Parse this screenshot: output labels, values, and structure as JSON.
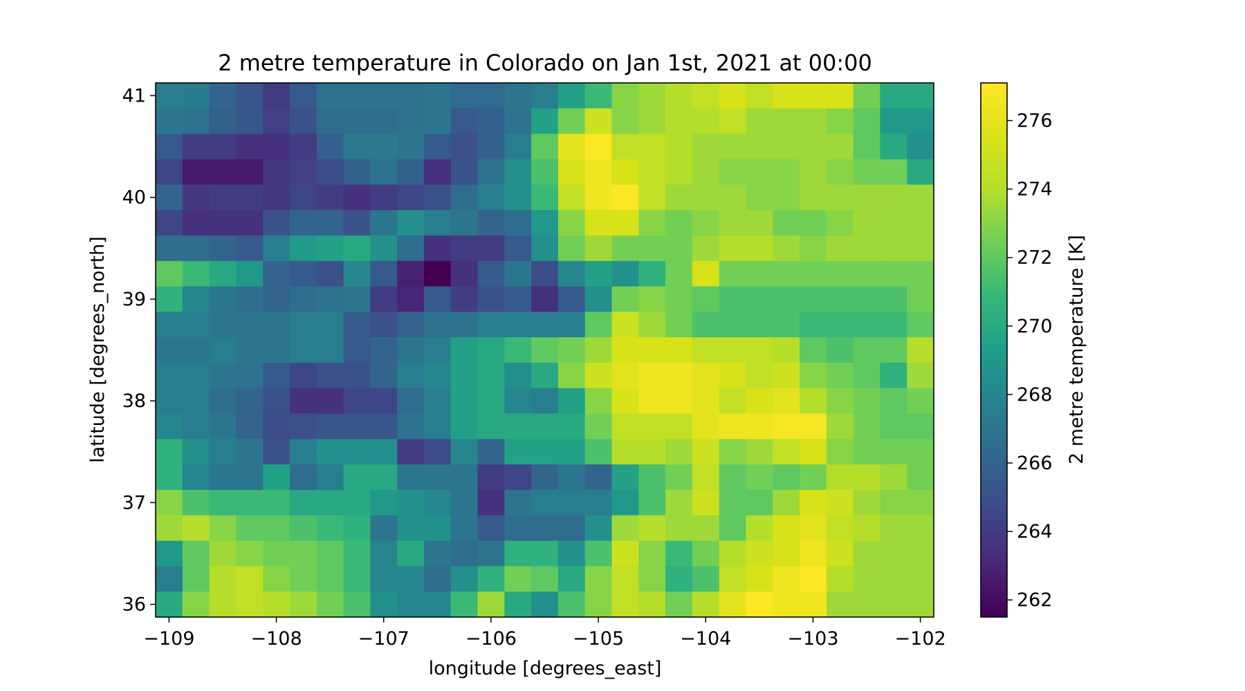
{
  "chart_data": {
    "type": "heatmap",
    "title": "2 metre temperature in Colorado on Jan 1st, 2021 at 00:00",
    "xlabel": "longitude [degrees_east]",
    "ylabel": "latitude [degrees_north]",
    "colorbar_label": "2 metre temperature [K]",
    "colormap": "viridis",
    "x_ticks": [
      -109,
      -108,
      -107,
      -106,
      -105,
      -104,
      -103,
      -102
    ],
    "x_tick_labels": [
      "−109",
      "−108",
      "−107",
      "−106",
      "−105",
      "−104",
      "−103",
      "−102"
    ],
    "y_ticks": [
      36,
      37,
      38,
      39,
      40,
      41
    ],
    "y_tick_labels": [
      "36",
      "37",
      "38",
      "39",
      "40",
      "41"
    ],
    "colorbar_ticks": [
      262,
      264,
      266,
      268,
      270,
      272,
      274,
      276
    ],
    "colorbar_tick_labels": [
      "262",
      "264",
      "266",
      "268",
      "270",
      "272",
      "274",
      "276"
    ],
    "vmin": 261.5,
    "vmax": 277.1,
    "xlim": [
      -109.125,
      -101.875
    ],
    "ylim": [
      35.875,
      41.125
    ],
    "lon": [
      -109.0,
      -108.75,
      -108.5,
      -108.25,
      -108.0,
      -107.75,
      -107.5,
      -107.25,
      -107.0,
      -106.75,
      -106.5,
      -106.25,
      -106.0,
      -105.75,
      -105.5,
      -105.25,
      -105.0,
      -104.75,
      -104.5,
      -104.25,
      -104.0,
      -103.75,
      -103.5,
      -103.25,
      -103.0,
      -102.75,
      -102.5,
      -102.25,
      -102.0
    ],
    "lat": [
      41.0,
      40.75,
      40.5,
      40.25,
      40.0,
      39.75,
      39.5,
      39.25,
      39.0,
      38.75,
      38.5,
      38.25,
      38.0,
      37.75,
      37.5,
      37.25,
      37.0,
      36.75,
      36.5,
      36.25,
      36.0
    ],
    "values": [
      [
        267.5,
        267.3,
        266.0,
        265.2,
        264.0,
        265.5,
        266.8,
        266.8,
        266.8,
        266.8,
        267.0,
        266.3,
        266.3,
        267.0,
        267.5,
        269.5,
        271.0,
        273.0,
        273.5,
        274.0,
        274.5,
        275.5,
        274.5,
        275.5,
        275.5,
        275.5,
        272.5,
        270.0,
        270.0
      ],
      [
        267.0,
        266.8,
        265.8,
        265.3,
        264.2,
        265.0,
        266.5,
        266.5,
        266.5,
        266.8,
        267.0,
        265.5,
        265.8,
        266.8,
        269.5,
        272.5,
        275.0,
        273.0,
        273.5,
        274.0,
        274.0,
        274.5,
        273.5,
        273.5,
        273.5,
        273.0,
        272.0,
        269.0,
        269.0
      ],
      [
        265.5,
        264.0,
        264.0,
        263.5,
        263.5,
        264.0,
        265.8,
        267.2,
        267.2,
        267.0,
        265.5,
        265.0,
        265.8,
        267.5,
        272.0,
        276.0,
        277.0,
        274.5,
        274.5,
        274.0,
        273.5,
        273.5,
        273.5,
        273.5,
        273.5,
        273.5,
        272.0,
        270.0,
        268.5
      ],
      [
        264.5,
        262.5,
        262.5,
        262.5,
        263.8,
        264.2,
        264.8,
        265.8,
        266.8,
        265.8,
        263.5,
        265.0,
        266.8,
        268.5,
        271.5,
        275.5,
        276.5,
        275.5,
        274.5,
        274.0,
        273.5,
        273.0,
        273.0,
        273.0,
        273.5,
        273.0,
        272.5,
        272.5,
        270.0
      ],
      [
        266.0,
        263.8,
        264.0,
        264.0,
        263.8,
        264.5,
        264.0,
        263.5,
        264.0,
        264.5,
        265.0,
        266.5,
        267.5,
        268.5,
        271.0,
        274.5,
        276.5,
        277.0,
        274.5,
        273.5,
        273.5,
        273.5,
        273.0,
        273.0,
        273.5,
        273.5,
        273.5,
        273.5,
        273.5
      ],
      [
        264.5,
        263.5,
        263.5,
        263.5,
        265.0,
        266.0,
        266.0,
        265.0,
        267.0,
        268.5,
        267.5,
        267.0,
        266.0,
        266.5,
        269.0,
        273.0,
        275.5,
        275.5,
        273.0,
        272.5,
        273.0,
        273.5,
        273.5,
        272.5,
        272.5,
        273.0,
        273.5,
        273.5,
        273.5
      ],
      [
        266.5,
        266.5,
        266.0,
        265.5,
        267.5,
        269.0,
        269.5,
        270.0,
        268.5,
        266.5,
        263.5,
        264.0,
        264.0,
        265.5,
        268.5,
        272.5,
        273.5,
        272.5,
        272.5,
        272.5,
        273.5,
        274.0,
        274.0,
        273.5,
        273.0,
        273.5,
        273.5,
        273.5,
        273.5
      ],
      [
        272.0,
        271.0,
        270.0,
        269.0,
        266.0,
        265.5,
        265.0,
        268.0,
        265.5,
        262.8,
        261.5,
        263.5,
        265.5,
        267.0,
        264.8,
        268.0,
        269.5,
        268.5,
        270.5,
        272.5,
        275.5,
        272.5,
        272.5,
        272.5,
        272.5,
        272.5,
        272.5,
        272.5,
        272.5
      ],
      [
        270.5,
        268.0,
        267.0,
        266.5,
        266.0,
        266.5,
        266.8,
        267.0,
        264.0,
        263.0,
        265.5,
        264.0,
        265.0,
        265.5,
        263.5,
        265.5,
        268.5,
        272.5,
        273.0,
        272.5,
        272.0,
        271.5,
        271.5,
        271.5,
        271.5,
        271.5,
        271.5,
        271.5,
        272.5
      ],
      [
        267.5,
        267.5,
        267.0,
        267.0,
        267.0,
        267.5,
        267.5,
        265.5,
        265.0,
        266.0,
        266.8,
        266.8,
        267.5,
        267.5,
        267.5,
        267.5,
        272.0,
        275.0,
        273.5,
        272.5,
        271.5,
        271.5,
        271.5,
        271.5,
        271.0,
        271.0,
        271.0,
        271.0,
        272.0
      ],
      [
        267.0,
        267.0,
        267.5,
        267.0,
        267.0,
        267.5,
        267.5,
        265.5,
        266.0,
        267.0,
        267.5,
        269.5,
        270.0,
        271.0,
        272.0,
        272.5,
        273.5,
        275.5,
        275.5,
        275.5,
        274.5,
        274.5,
        274.5,
        274.0,
        272.0,
        271.5,
        272.0,
        272.0,
        274.0
      ],
      [
        267.5,
        267.5,
        267.0,
        266.8,
        265.5,
        264.5,
        265.0,
        265.0,
        266.0,
        267.5,
        268.0,
        269.5,
        270.0,
        268.5,
        270.0,
        273.0,
        275.0,
        276.0,
        276.5,
        276.5,
        276.0,
        275.5,
        274.5,
        275.0,
        273.0,
        272.5,
        272.0,
        270.5,
        273.5
      ],
      [
        267.5,
        267.5,
        266.5,
        266.0,
        265.0,
        263.5,
        263.5,
        264.5,
        264.5,
        266.5,
        267.5,
        269.5,
        270.0,
        268.0,
        267.5,
        269.5,
        273.0,
        275.5,
        276.5,
        276.5,
        276.0,
        274.5,
        275.5,
        276.0,
        274.0,
        273.0,
        272.5,
        272.0,
        272.5
      ],
      [
        268.0,
        267.5,
        267.0,
        266.0,
        264.8,
        265.0,
        265.2,
        265.2,
        265.2,
        266.8,
        267.5,
        269.5,
        270.0,
        270.0,
        270.0,
        270.0,
        272.5,
        274.5,
        274.5,
        274.5,
        276.0,
        276.5,
        276.5,
        276.8,
        276.8,
        273.5,
        272.5,
        272.0,
        272.0
      ],
      [
        270.5,
        268.5,
        267.5,
        267.0,
        265.0,
        267.5,
        268.5,
        268.5,
        268.5,
        264.0,
        264.8,
        268.0,
        266.0,
        269.5,
        269.5,
        269.5,
        271.5,
        274.0,
        274.0,
        273.5,
        275.0,
        273.0,
        273.5,
        274.5,
        275.5,
        273.0,
        272.5,
        272.5,
        272.5
      ],
      [
        270.5,
        268.0,
        267.0,
        267.0,
        269.5,
        266.5,
        267.5,
        270.0,
        270.0,
        267.0,
        267.0,
        267.0,
        264.0,
        264.5,
        266.0,
        267.0,
        266.0,
        269.5,
        271.5,
        272.5,
        274.5,
        272.0,
        272.5,
        272.0,
        272.5,
        274.0,
        274.0,
        273.5,
        272.5
      ],
      [
        273.0,
        271.5,
        271.0,
        271.0,
        271.0,
        270.0,
        270.0,
        270.0,
        269.0,
        268.5,
        268.0,
        267.0,
        263.5,
        267.0,
        267.5,
        267.5,
        267.5,
        269.0,
        271.5,
        273.5,
        275.0,
        272.0,
        272.0,
        273.5,
        275.5,
        275.0,
        273.5,
        273.0,
        273.0
      ],
      [
        273.5,
        274.0,
        273.0,
        272.0,
        272.0,
        271.5,
        271.0,
        270.5,
        267.0,
        268.5,
        268.5,
        267.0,
        265.5,
        266.5,
        266.5,
        266.5,
        268.5,
        273.5,
        274.0,
        273.5,
        273.5,
        272.0,
        274.0,
        275.5,
        276.0,
        274.5,
        274.0,
        273.5,
        273.5
      ],
      [
        269.0,
        272.0,
        273.5,
        273.0,
        272.5,
        272.5,
        272.0,
        271.0,
        268.0,
        270.0,
        267.0,
        266.5,
        267.0,
        270.5,
        270.5,
        268.5,
        271.5,
        275.0,
        273.0,
        271.0,
        272.5,
        274.0,
        275.0,
        275.5,
        276.5,
        275.0,
        273.5,
        273.5,
        273.5
      ],
      [
        267.5,
        272.0,
        274.0,
        274.5,
        273.0,
        272.5,
        272.0,
        271.0,
        268.0,
        268.0,
        266.5,
        268.5,
        270.5,
        272.5,
        272.0,
        270.0,
        273.0,
        274.5,
        273.0,
        270.5,
        271.5,
        274.5,
        275.5,
        276.5,
        277.0,
        274.0,
        273.5,
        273.5,
        273.5
      ],
      [
        270.0,
        273.0,
        274.0,
        274.5,
        274.0,
        273.5,
        272.5,
        271.5,
        268.5,
        268.0,
        268.0,
        271.0,
        273.5,
        270.0,
        268.5,
        271.5,
        273.0,
        274.5,
        274.0,
        272.5,
        274.0,
        276.0,
        277.0,
        276.5,
        276.5,
        273.5,
        273.5,
        273.5,
        273.5
      ]
    ]
  }
}
